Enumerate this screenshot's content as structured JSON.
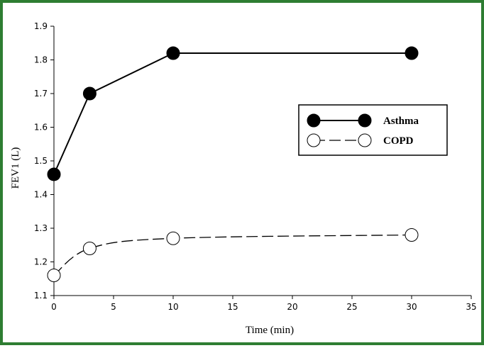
{
  "colors": {
    "frame": "#2e7d32",
    "line": "#000000",
    "filled_marker": "#000000",
    "open_marker": "#ffffff"
  },
  "chart_data": {
    "type": "line",
    "title": "",
    "xlabel": "Time (min)",
    "ylabel": "FEV1 (L)",
    "xlim": [
      0,
      35
    ],
    "ylim": [
      1.1,
      1.9
    ],
    "xticks": [
      "0",
      "5",
      "10",
      "15",
      "20",
      "25",
      "30",
      "35"
    ],
    "yticks": [
      "1.1",
      "1.2",
      "1.3",
      "1.4",
      "1.5",
      "1.6",
      "1.7",
      "1.8",
      "1.9"
    ],
    "grid": false,
    "legend_position": "right",
    "series": [
      {
        "name": "Asthma",
        "marker": "filled-circle",
        "line": "solid",
        "x": [
          0,
          3,
          10,
          30
        ],
        "y": [
          1.46,
          1.7,
          1.82,
          1.82
        ]
      },
      {
        "name": "COPD",
        "marker": "open-circle",
        "line": "dashed",
        "x": [
          0,
          3,
          10,
          30
        ],
        "y": [
          1.16,
          1.24,
          1.27,
          1.28
        ]
      }
    ]
  }
}
